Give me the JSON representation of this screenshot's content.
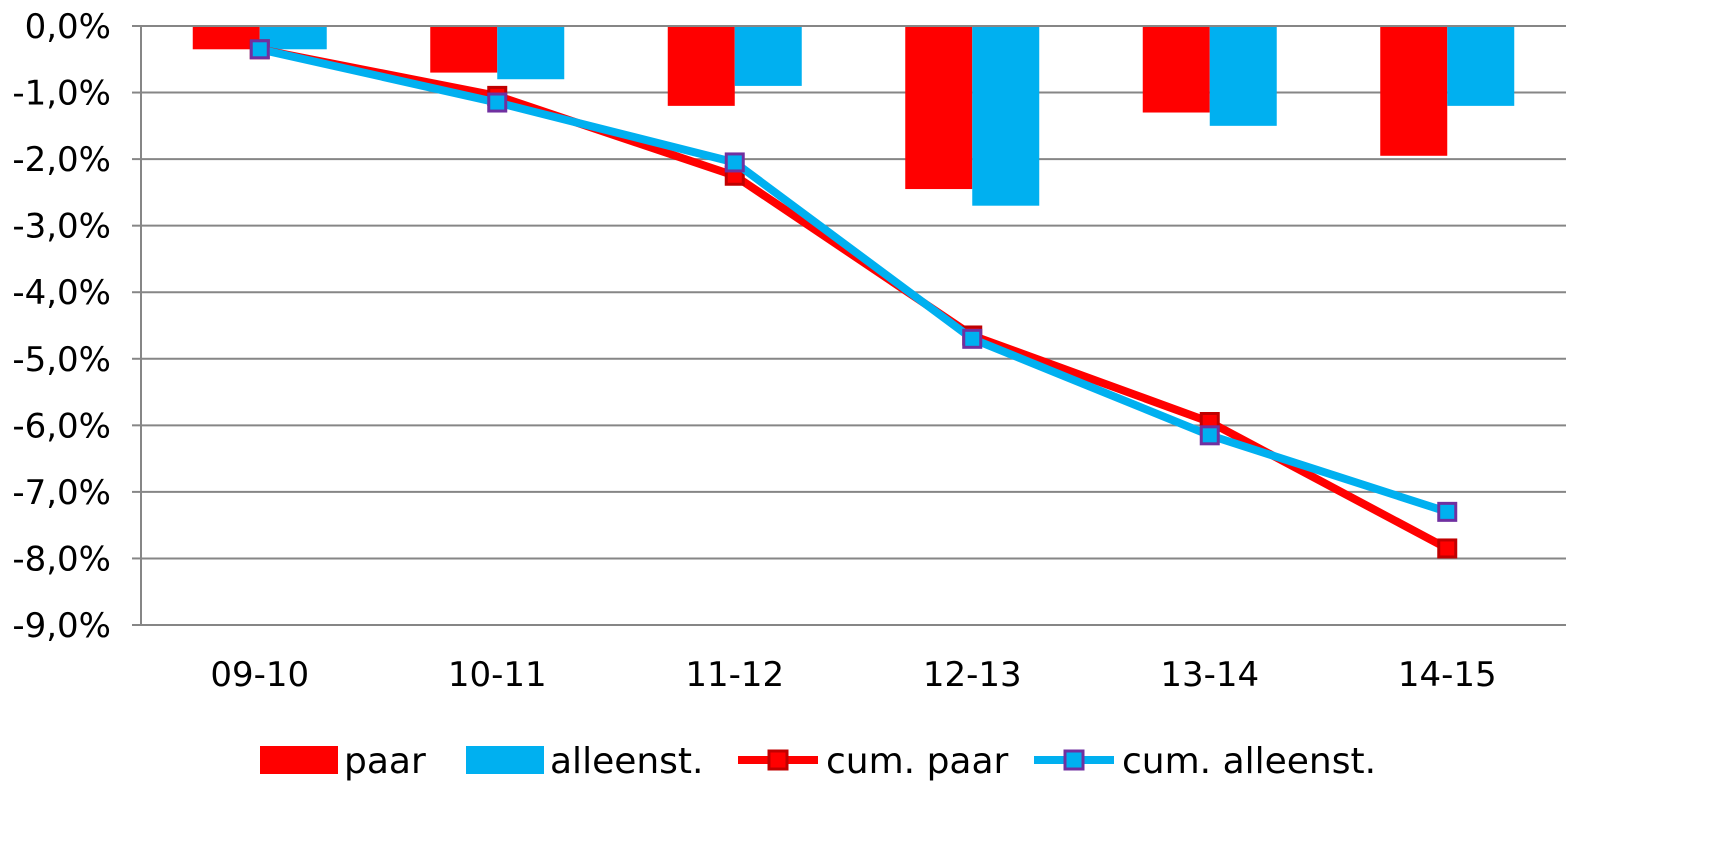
{
  "chart_data": {
    "type": "bar",
    "categories": [
      "09-10",
      "10-11",
      "11-12",
      "12-13",
      "13-14",
      "14-15"
    ],
    "ylim": [
      -9.0,
      0.0
    ],
    "yticks": [
      0,
      -1,
      -2,
      -3,
      -4,
      -5,
      -6,
      -7,
      -8,
      -9
    ],
    "ytick_labels": [
      "0,0%",
      "-1,0%",
      "-2,0%",
      "-3,0%",
      "-4,0%",
      "-5,0%",
      "-6,0%",
      "-7,0%",
      "-8,0%",
      "-9,0%"
    ],
    "grid": true,
    "legend_position": "bottom",
    "series": [
      {
        "name": "paar",
        "kind": "bar",
        "color": "#ff0000",
        "values": [
          -0.35,
          -0.7,
          -1.2,
          -2.45,
          -1.3,
          -1.95
        ]
      },
      {
        "name": "alleenst.",
        "kind": "bar",
        "color": "#00b0f0",
        "values": [
          -0.35,
          -0.8,
          -0.9,
          -2.7,
          -1.5,
          -1.2
        ]
      },
      {
        "name": "cum. paar",
        "kind": "line",
        "color": "#ff0000",
        "marker_color": "#ff0000",
        "marker_border": "#c00000",
        "values": [
          -0.35,
          -1.05,
          -2.25,
          -4.65,
          -5.95,
          -7.85
        ]
      },
      {
        "name": "cum. alleenst.",
        "kind": "line",
        "color": "#00b0f0",
        "marker_color": "#00b0f0",
        "marker_border": "#7030a0",
        "values": [
          -0.35,
          -1.15,
          -2.05,
          -4.7,
          -6.15,
          -7.3
        ]
      }
    ]
  }
}
